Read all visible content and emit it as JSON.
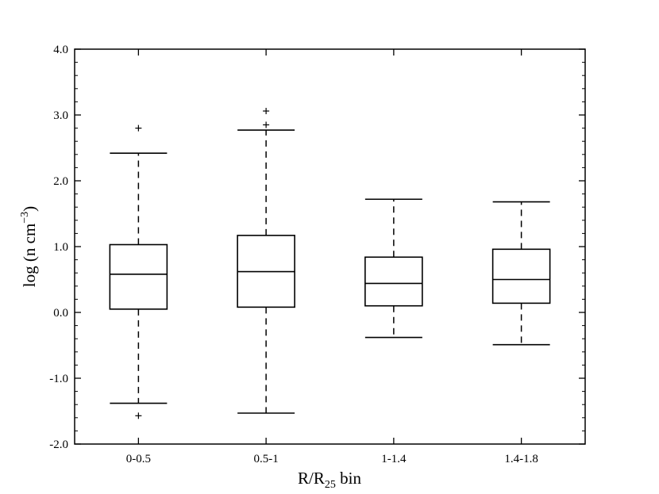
{
  "chart_data": {
    "type": "box",
    "categories": [
      "0-0.5",
      "0.5-1",
      "1-1.4",
      "1.4-1.8"
    ],
    "boxes": [
      {
        "category": "0-0.5",
        "whisker_low": -1.38,
        "q1": 0.05,
        "median": 0.58,
        "q3": 1.03,
        "whisker_high": 2.42,
        "outliers": [
          2.8,
          -1.57
        ]
      },
      {
        "category": "0.5-1",
        "whisker_low": -1.53,
        "q1": 0.08,
        "median": 0.62,
        "q3": 1.17,
        "whisker_high": 2.77,
        "outliers": [
          3.06,
          2.85
        ]
      },
      {
        "category": "1-1.4",
        "whisker_low": -0.38,
        "q1": 0.1,
        "median": 0.44,
        "q3": 0.84,
        "whisker_high": 1.72,
        "outliers": []
      },
      {
        "category": "1.4-1.8",
        "whisker_low": -0.49,
        "q1": 0.14,
        "median": 0.5,
        "q3": 0.96,
        "whisker_high": 1.68,
        "outliers": []
      }
    ],
    "ylim": [
      -2.0,
      4.0
    ],
    "yticks": [
      "-2.0",
      "-1.0",
      "0.0",
      "1.0",
      "2.0",
      "3.0",
      "4.0"
    ],
    "xlabel": {
      "main": "R/R",
      "sub": "25",
      "tail": " bin"
    },
    "ylabel": {
      "main": "log (n cm",
      "sup": "−3",
      "tail": ")"
    },
    "grid": false,
    "colors": {
      "line": "#000000",
      "background": "#ffffff"
    }
  }
}
